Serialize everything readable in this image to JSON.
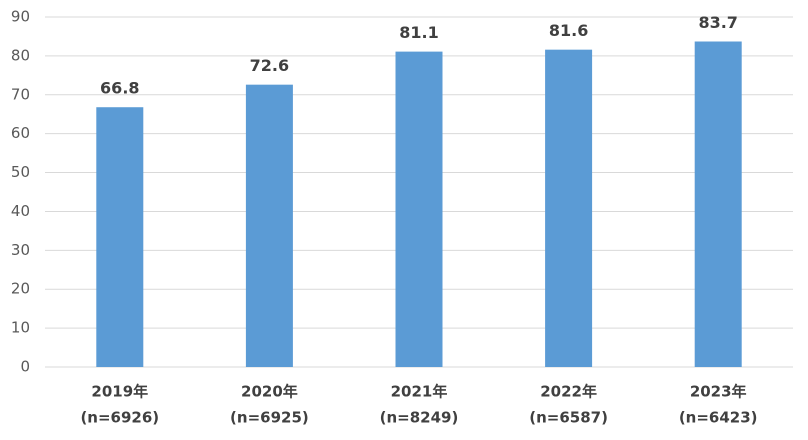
{
  "chart_data": {
    "type": "bar",
    "categories": [
      [
        "2019年",
        "(n=6926)"
      ],
      [
        "2020年",
        "(n=6925)"
      ],
      [
        "2021年",
        "(n=8249)"
      ],
      [
        "2022年",
        "(n=6587)"
      ],
      [
        "2023年",
        "(n=6423)"
      ]
    ],
    "values": [
      66.8,
      72.6,
      81.1,
      81.6,
      83.7
    ],
    "color": "#5b9bd5",
    "ylim": [
      0,
      90
    ],
    "yticks": [
      0,
      10,
      20,
      30,
      40,
      50,
      60,
      70,
      80,
      90
    ],
    "grid": true,
    "data_labels": true
  }
}
